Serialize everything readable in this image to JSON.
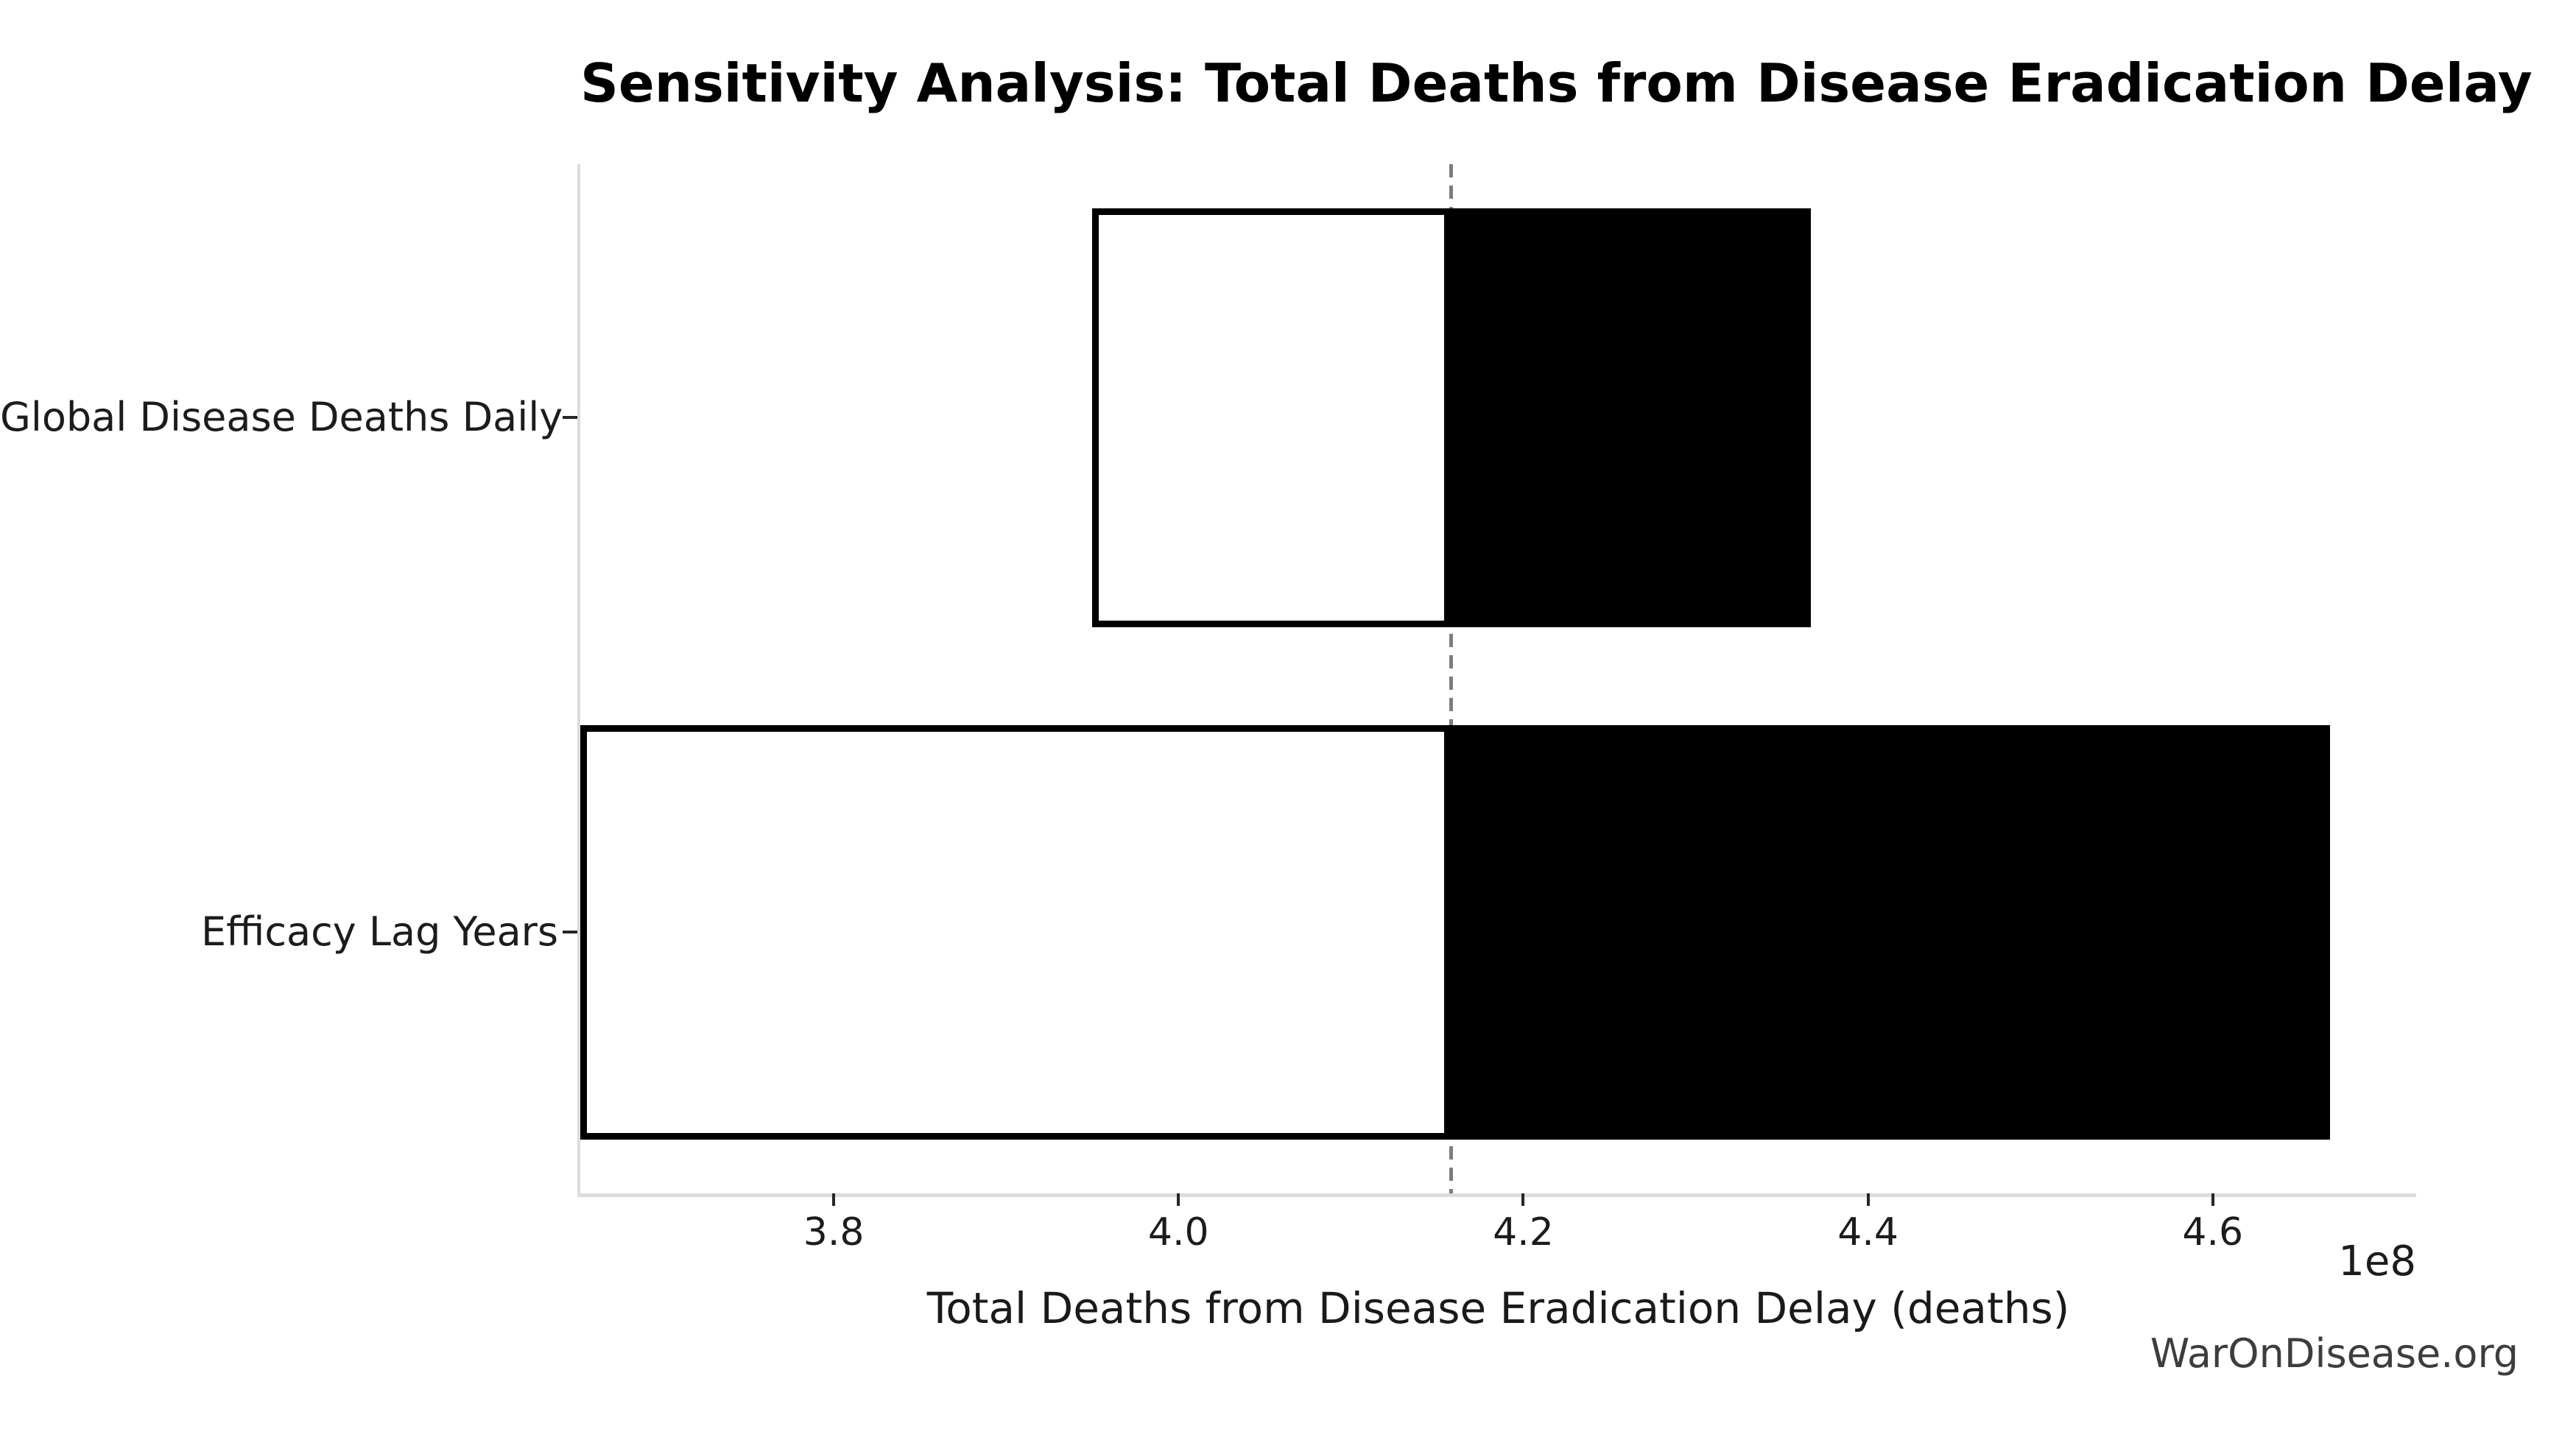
{
  "watermark": "WarOnDisease.org",
  "chart_data": {
    "type": "bar",
    "orientation": "horizontal",
    "variant": "tornado-sensitivity",
    "title": "Sensitivity Analysis: Total Deaths from Disease Eradication Delay",
    "xlabel": "Total Deaths from Disease Eradication Delay (deaths)",
    "x_offset_label": "1e8",
    "categories": [
      "Global Disease Deaths Daily",
      "Efficacy Lag Years"
    ],
    "baseline": 415800000,
    "bars": [
      {
        "category": "Global Disease Deaths Daily",
        "low": 395000000,
        "high": 436700000
      },
      {
        "category": "Efficacy Lag Years",
        "low": 365300000,
        "high": 466800000
      }
    ],
    "xlim": [
      365300000,
      471800000
    ],
    "x_ticks": [
      380000000,
      400000000,
      420000000,
      440000000,
      460000000
    ],
    "x_tick_labels": [
      "3.8",
      "4.0",
      "4.2",
      "4.4",
      "4.6"
    ],
    "grid": false,
    "legend": false,
    "colors": {
      "low_fill": "#ffffff",
      "high_fill": "#000000",
      "bar_edge": "#000000",
      "baseline_line": "#7d7d7d",
      "spine": "#dcdcdc",
      "tick": "#262626"
    }
  }
}
